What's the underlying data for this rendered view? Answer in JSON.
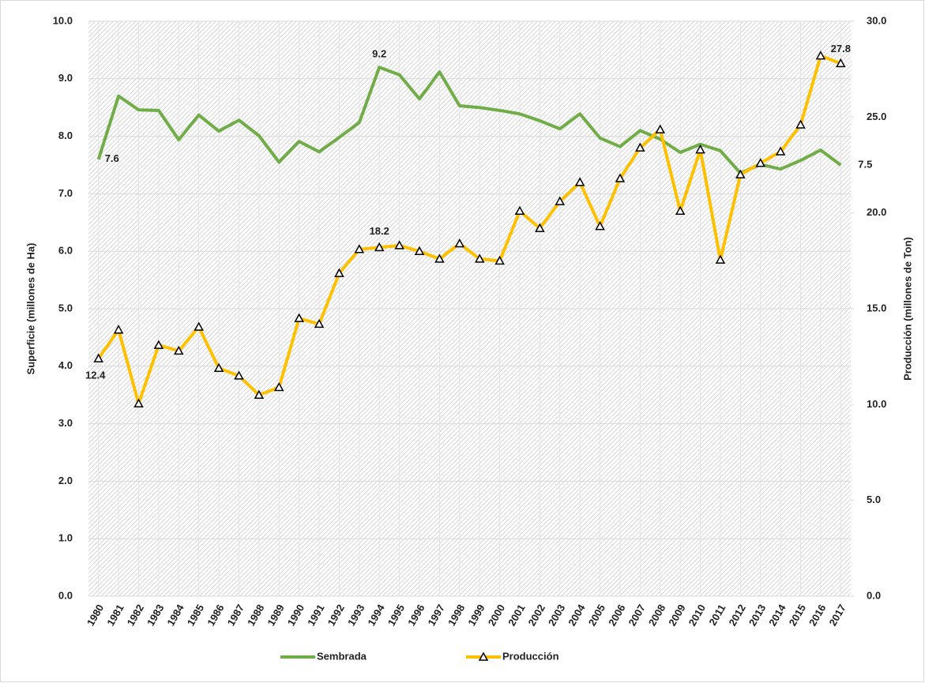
{
  "chart_data": {
    "type": "line",
    "categories": [
      "1980",
      "1981",
      "1982",
      "1983",
      "1984",
      "1985",
      "1986",
      "1987",
      "1988",
      "1989",
      "1990",
      "1991",
      "1992",
      "1993",
      "1994",
      "1995",
      "1996",
      "1997",
      "1998",
      "1999",
      "2000",
      "2001",
      "2002",
      "2003",
      "2004",
      "2005",
      "2006",
      "2007",
      "2008",
      "2009",
      "2010",
      "2011",
      "2012",
      "2013",
      "2014",
      "2015",
      "2016",
      "2017"
    ],
    "series": [
      {
        "name": "Sembrada",
        "color": "#70ad47",
        "values": [
          7.6,
          8.7,
          8.46,
          8.45,
          7.94,
          8.37,
          8.09,
          8.28,
          8.01,
          7.55,
          7.91,
          7.73,
          7.98,
          8.24,
          9.2,
          9.07,
          8.65,
          9.12,
          8.53,
          8.5,
          8.45,
          8.39,
          8.27,
          8.13,
          8.39,
          7.97,
          7.82,
          8.1,
          7.95,
          7.72,
          7.86,
          7.75,
          7.36,
          7.51,
          7.43,
          7.58,
          7.76,
          7.5
        ]
      },
      {
        "name": "Producción",
        "color": "#ffc000",
        "axis": "y2",
        "values": [
          12.4,
          13.9,
          10.05,
          13.1,
          12.8,
          14.05,
          11.9,
          11.5,
          10.5,
          10.9,
          14.5,
          14.2,
          16.85,
          18.1,
          18.2,
          18.3,
          18.0,
          17.6,
          18.4,
          17.6,
          17.5,
          20.1,
          19.2,
          20.6,
          21.6,
          19.3,
          21.8,
          23.4,
          24.35,
          20.1,
          23.3,
          17.55,
          22.0,
          22.6,
          23.2,
          24.6,
          28.2,
          27.8
        ]
      }
    ],
    "ylabel": "Superficie (millones de Ha)",
    "y2label": "Producción (millones de Ton)",
    "ylim": [
      0,
      10
    ],
    "yticks": [
      {
        "value": 0,
        "label": "0.0"
      },
      {
        "value": 1,
        "label": "1.0"
      },
      {
        "value": 2,
        "label": "2.0"
      },
      {
        "value": 3,
        "label": "3.0"
      },
      {
        "value": 4,
        "label": "4.0"
      },
      {
        "value": 5,
        "label": "5.0"
      },
      {
        "value": 6,
        "label": "6.0"
      },
      {
        "value": 7,
        "label": "7.0"
      },
      {
        "value": 8,
        "label": "8.0"
      },
      {
        "value": 9,
        "label": "9.0"
      },
      {
        "value": 10,
        "label": "10.0"
      }
    ],
    "y2lim": [
      0,
      30
    ],
    "y2ticks": [
      {
        "value": 0,
        "label": "0.0"
      },
      {
        "value": 5,
        "label": "5.0"
      },
      {
        "value": 10,
        "label": "10.0"
      },
      {
        "value": 15,
        "label": "15.0"
      },
      {
        "value": 20,
        "label": "20.0"
      },
      {
        "value": 25,
        "label": "25.0"
      },
      {
        "value": 30,
        "label": "30.0"
      }
    ],
    "grid": true,
    "legend": "bottom"
  }
}
